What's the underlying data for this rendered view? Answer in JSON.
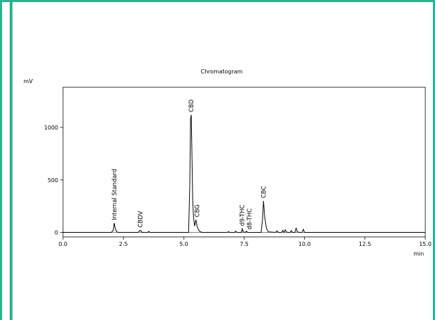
{
  "chart_data": {
    "type": "line",
    "title": "Chromatogram",
    "ylabel": "mV",
    "xlabel": "min",
    "xlim": [
      0.0,
      15.0
    ],
    "ylim": [
      -20,
      1320
    ],
    "x_ticks": [
      "0.0",
      "2.5",
      "5.0",
      "7.5",
      "10.0",
      "12.5",
      "15.0"
    ],
    "y_ticks": [
      "0",
      "500",
      "1000"
    ],
    "grid": false,
    "series": [
      {
        "line_color": "#000000",
        "x": [
          0.0,
          2.0,
          2.08,
          2.12,
          2.16,
          2.22,
          2.3,
          3.1,
          3.2,
          3.28,
          3.5,
          3.55,
          3.6,
          5.2,
          5.25,
          5.28,
          5.31,
          5.34,
          5.37,
          5.4,
          5.45,
          5.5,
          5.55,
          5.6,
          5.65,
          5.75,
          6.8,
          6.85,
          6.9,
          7.1,
          7.15,
          7.2,
          7.38,
          7.42,
          7.46,
          7.55,
          7.6,
          7.64,
          7.7,
          8.2,
          8.26,
          8.3,
          8.35,
          8.42,
          8.5,
          8.8,
          8.86,
          8.92,
          9.05,
          9.1,
          9.15,
          9.2,
          9.25,
          9.3,
          9.4,
          9.45,
          9.5,
          9.6,
          9.65,
          9.7,
          9.8,
          9.9,
          9.95,
          10.0,
          10.1,
          15.0
        ],
        "y": [
          0,
          0,
          20,
          90,
          40,
          5,
          0,
          0,
          20,
          0,
          0,
          10,
          0,
          0,
          450,
          1080,
          1120,
          700,
          320,
          150,
          60,
          120,
          60,
          30,
          10,
          0,
          0,
          8,
          0,
          0,
          12,
          0,
          0,
          35,
          5,
          0,
          12,
          0,
          0,
          0,
          120,
          300,
          150,
          40,
          5,
          0,
          15,
          0,
          0,
          20,
          0,
          25,
          5,
          0,
          0,
          18,
          0,
          0,
          40,
          5,
          0,
          0,
          30,
          0,
          0,
          0
        ]
      }
    ],
    "peaks": [
      {
        "label": "Internal Standard",
        "x": 2.12
      },
      {
        "label": "CBDV",
        "x": 3.2
      },
      {
        "label": "CBD",
        "x": 5.3
      },
      {
        "label": "CBG",
        "x": 5.55
      },
      {
        "label": "d9-THC",
        "x": 7.42
      },
      {
        "label": "d8-THC",
        "x": 7.72
      },
      {
        "label": "CBC",
        "x": 8.3
      }
    ]
  }
}
